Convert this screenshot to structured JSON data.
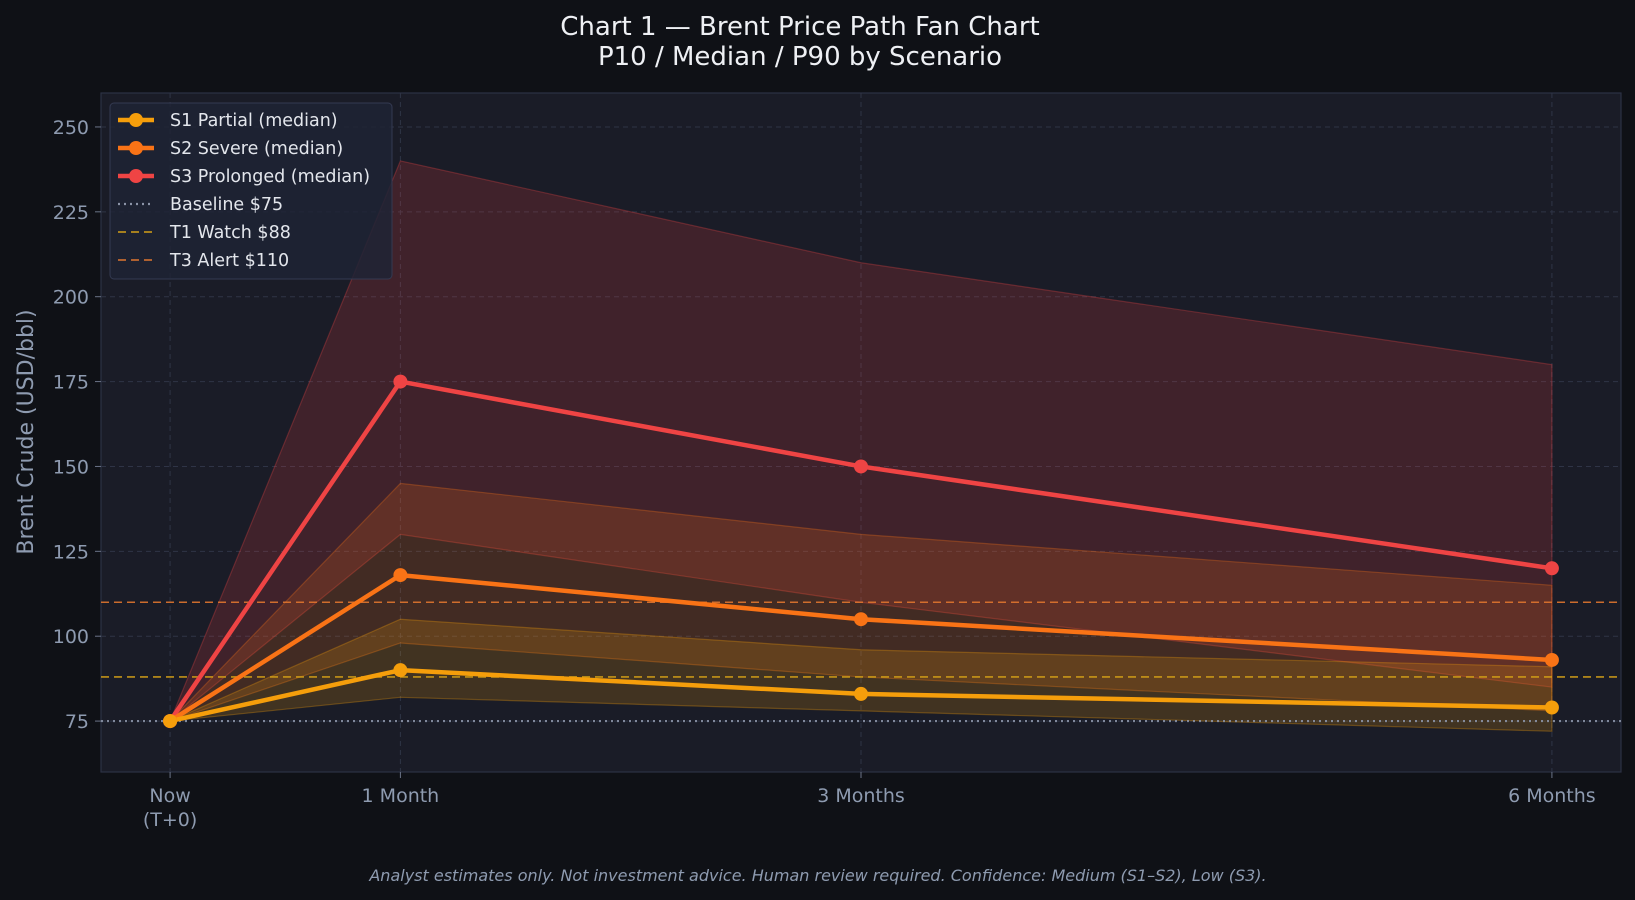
{
  "chart_data": {
    "type": "line",
    "title": "Chart 1 — Brent Price Path Fan Chart",
    "subtitle": "P10 / Median / P90 by Scenario",
    "xlabel": "",
    "ylabel": "Brent Crude (USD/bbl)",
    "x": [
      0,
      1,
      3,
      6
    ],
    "x_tick_labels": [
      {
        "x": 0,
        "lines": [
          "Now",
          "(T+0)"
        ]
      },
      {
        "x": 1,
        "lines": [
          "1 Month"
        ]
      },
      {
        "x": 3,
        "lines": [
          "3 Months"
        ]
      },
      {
        "x": 6,
        "lines": [
          "6 Months"
        ]
      }
    ],
    "xlim": [
      -0.3,
      6.3
    ],
    "ylim": [
      60,
      260
    ],
    "y_ticks": [
      75,
      100,
      125,
      150,
      175,
      200,
      225,
      250
    ],
    "grid": true,
    "legend_position": "top-left",
    "series": [
      {
        "name": "S3 Prolonged (median)",
        "color": "#ef4444",
        "median": [
          75,
          175,
          150,
          120
        ],
        "p10": [
          75,
          130,
          110,
          85
        ],
        "p90": [
          75,
          240,
          210,
          180
        ]
      },
      {
        "name": "S2 Severe (median)",
        "color": "#f97316",
        "median": [
          75,
          118,
          105,
          93
        ],
        "p10": [
          75,
          98,
          88,
          78
        ],
        "p90": [
          75,
          145,
          130,
          115
        ]
      },
      {
        "name": "S1 Partial (median)",
        "color": "#f59e0b",
        "median": [
          75,
          90,
          83,
          79
        ],
        "p10": [
          75,
          82,
          78,
          72
        ],
        "p90": [
          75,
          105,
          96,
          91
        ]
      }
    ],
    "reference_lines": [
      {
        "name": "Baseline $75",
        "value": 75,
        "color": "#8b93a7",
        "style": "dotted"
      },
      {
        "name": "T1 Watch $88",
        "value": 88,
        "color": "#d4a017",
        "style": "dashed"
      },
      {
        "name": "T3 Alert $110",
        "value": 110,
        "color": "#e0762f",
        "style": "dashed"
      }
    ],
    "legend_order": [
      "S1 Partial (median)",
      "S2 Severe (median)",
      "S3 Prolonged (median)",
      "Baseline $75",
      "T1 Watch $88",
      "T3 Alert $110"
    ]
  },
  "footnote": "Analyst estimates only. Not investment advice. Human review required. Confidence: Medium (S1–S2), Low (S3)."
}
